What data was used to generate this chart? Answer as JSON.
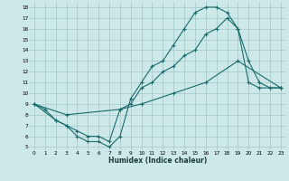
{
  "xlabel": "Humidex (Indice chaleur)",
  "background_color": "#cce8e8",
  "grid_color": "#aacccc",
  "line_color": "#1a6b6b",
  "xlim": [
    -0.5,
    23.5
  ],
  "ylim": [
    4.7,
    18.5
  ],
  "xticks": [
    0,
    1,
    2,
    3,
    4,
    5,
    6,
    7,
    8,
    9,
    10,
    11,
    12,
    13,
    14,
    15,
    16,
    17,
    18,
    19,
    20,
    21,
    22,
    23
  ],
  "yticks": [
    5,
    6,
    7,
    8,
    9,
    10,
    11,
    12,
    13,
    14,
    15,
    16,
    17,
    18
  ],
  "line1_x": [
    0,
    1,
    2,
    3,
    4,
    5,
    6,
    7,
    8,
    9,
    10,
    11,
    12,
    13,
    14,
    15,
    16,
    17,
    18,
    19,
    20,
    21,
    22,
    23
  ],
  "line1_y": [
    9.0,
    8.5,
    7.5,
    7.0,
    6.0,
    5.5,
    5.5,
    5.0,
    6.0,
    9.5,
    11.0,
    12.5,
    13.0,
    14.5,
    16.0,
    17.5,
    18.0,
    18.0,
    17.5,
    16.0,
    11.0,
    10.5,
    10.5,
    10.5
  ],
  "line2_x": [
    0,
    2,
    3,
    4,
    5,
    6,
    7,
    8,
    9,
    10,
    11,
    12,
    13,
    14,
    15,
    16,
    17,
    18,
    19,
    20,
    21,
    22,
    23
  ],
  "line2_y": [
    9.0,
    7.5,
    7.0,
    6.5,
    6.0,
    6.0,
    5.5,
    8.5,
    9.0,
    10.5,
    11.0,
    12.0,
    12.5,
    13.5,
    14.0,
    15.5,
    16.0,
    17.0,
    16.0,
    13.0,
    11.0,
    10.5,
    10.5
  ],
  "line3_x": [
    0,
    3,
    8,
    10,
    13,
    16,
    19,
    23
  ],
  "line3_y": [
    9.0,
    8.0,
    8.5,
    9.0,
    10.0,
    11.0,
    13.0,
    10.5
  ]
}
